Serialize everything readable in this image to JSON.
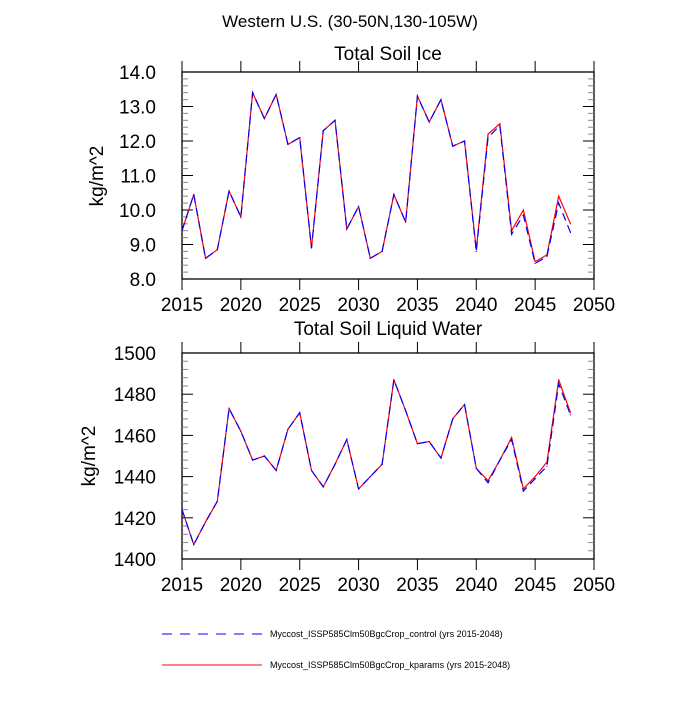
{
  "suptitle": "Western U.S. (30-50N,130-105W)",
  "legend": {
    "placement": "bottom",
    "entries": [
      {
        "label": "Myccost_ISSP585Clm50BgcCrop_control (yrs 2015-2048)",
        "color": "#0000ff",
        "style": "dashed"
      },
      {
        "label": "Myccost_ISSP585Clm50BgcCrop_kparams (yrs 2015-2048)",
        "color": "#ff0000",
        "style": "solid"
      }
    ]
  },
  "chart_data": [
    {
      "type": "line",
      "title": "Total Soil Ice",
      "xlabel": "",
      "ylabel": "kg/m^2",
      "xlim": [
        2015,
        2050
      ],
      "ylim": [
        8.0,
        14.0
      ],
      "xticks": [
        "2015",
        "2020",
        "2025",
        "2030",
        "2035",
        "2040",
        "2045",
        "2050"
      ],
      "yticks": [
        "8.0",
        "9.0",
        "10.0",
        "11.0",
        "12.0",
        "13.0",
        "14.0"
      ],
      "x": [
        2015,
        2016,
        2017,
        2018,
        2019,
        2020,
        2021,
        2022,
        2023,
        2024,
        2025,
        2026,
        2027,
        2028,
        2029,
        2030,
        2031,
        2032,
        2033,
        2034,
        2035,
        2036,
        2037,
        2038,
        2039,
        2040,
        2041,
        2042,
        2043,
        2044,
        2045,
        2046,
        2047,
        2048
      ],
      "series": [
        {
          "name": "control",
          "values": [
            9.4,
            10.45,
            8.6,
            8.85,
            10.55,
            9.8,
            13.4,
            12.65,
            13.35,
            11.9,
            12.1,
            8.9,
            12.3,
            12.6,
            9.45,
            10.1,
            8.6,
            8.8,
            10.45,
            9.65,
            13.3,
            12.55,
            13.2,
            11.85,
            12.0,
            8.8,
            12.1,
            12.45,
            9.3,
            9.85,
            8.45,
            8.65,
            10.2,
            9.35
          ]
        },
        {
          "name": "kparams",
          "values": [
            9.4,
            10.45,
            8.6,
            8.85,
            10.55,
            9.8,
            13.4,
            12.65,
            13.35,
            11.9,
            12.1,
            8.9,
            12.3,
            12.6,
            9.45,
            10.1,
            8.6,
            8.8,
            10.45,
            9.65,
            13.3,
            12.55,
            13.2,
            11.85,
            12.0,
            8.85,
            12.2,
            12.5,
            9.4,
            10.0,
            8.5,
            8.7,
            10.4,
            9.6
          ]
        }
      ]
    },
    {
      "type": "line",
      "title": "Total Soil Liquid Water",
      "xlabel": "",
      "ylabel": "kg/m^2",
      "xlim": [
        2015,
        2050
      ],
      "ylim": [
        1400,
        1500
      ],
      "xticks": [
        "2015",
        "2020",
        "2025",
        "2030",
        "2035",
        "2040",
        "2045",
        "2050"
      ],
      "yticks": [
        "1400",
        "1420",
        "1440",
        "1460",
        "1480",
        "1500"
      ],
      "x": [
        2015,
        2016,
        2017,
        2018,
        2019,
        2020,
        2021,
        2022,
        2023,
        2024,
        2025,
        2026,
        2027,
        2028,
        2029,
        2030,
        2031,
        2032,
        2033,
        2034,
        2035,
        2036,
        2037,
        2038,
        2039,
        2040,
        2041,
        2042,
        2043,
        2044,
        2045,
        2046,
        2047,
        2048
      ],
      "series": [
        {
          "name": "control",
          "values": [
            1424,
            1407,
            1418,
            1428,
            1473,
            1462,
            1448,
            1450,
            1443,
            1463,
            1471,
            1443,
            1435,
            1446,
            1458,
            1434,
            1440,
            1446,
            1487,
            1472,
            1456,
            1457,
            1449,
            1468,
            1475,
            1444,
            1437,
            1448,
            1458,
            1433,
            1439,
            1445,
            1485,
            1470
          ]
        },
        {
          "name": "kparams",
          "values": [
            1424,
            1407,
            1418,
            1428,
            1473,
            1462,
            1448,
            1450,
            1443,
            1463,
            1471,
            1443,
            1435,
            1446,
            1458,
            1434,
            1440,
            1446,
            1487,
            1472,
            1456,
            1457,
            1449,
            1468,
            1475,
            1444,
            1438,
            1448,
            1459,
            1434,
            1440,
            1447,
            1487,
            1471
          ]
        }
      ]
    }
  ]
}
